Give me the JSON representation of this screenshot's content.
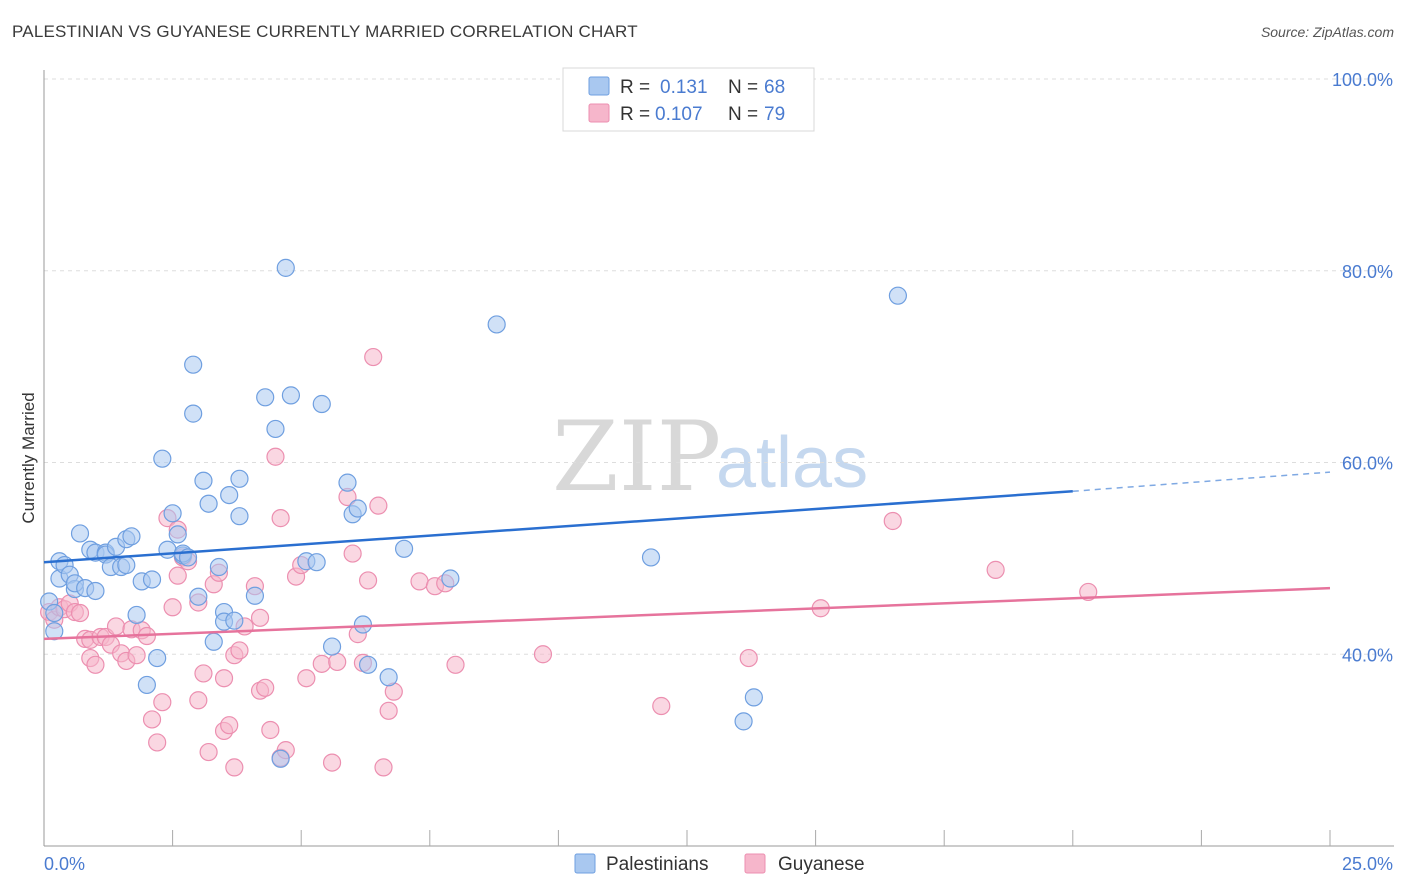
{
  "title": "PALESTINIAN VS GUYANESE CURRENTLY MARRIED CORRELATION CHART",
  "source": "Source: ZipAtlas.com",
  "watermark": {
    "zip": "ZIP",
    "atlas": "atlas"
  },
  "legend": {
    "rows": [
      {
        "r_label": "R =",
        "r_value": "0.131",
        "n_label": "N =",
        "n_value": "68"
      },
      {
        "r_label": "R =",
        "r_value": "0.107",
        "n_label": "N =",
        "n_value": "79"
      }
    ]
  },
  "bottom_legend": {
    "palestinians": "Palestinians",
    "guyanese": "Guyanese"
  },
  "colors": {
    "blue_fill": "#a9c8f0",
    "blue_stroke": "#6f9fe0",
    "blue_line": "#2a6fd0",
    "pink_fill": "#f6b6cb",
    "pink_stroke": "#ec8fb0",
    "pink_line": "#e6739c",
    "tick_text": "#4a7bd0",
    "grid": "#dddddd"
  },
  "chart_data": {
    "type": "scatter",
    "title": "PALESTINIAN VS GUYANESE CURRENTLY MARRIED CORRELATION CHART",
    "xlabel": "",
    "ylabel": "Currently Married",
    "xlim": [
      0,
      25
    ],
    "ylim": [
      20,
      100
    ],
    "x_tick_labels": [
      "0.0%",
      "25.0%"
    ],
    "y_ticks": [
      40,
      60,
      80,
      100
    ],
    "y_tick_labels": [
      "40.0%",
      "60.0%",
      "80.0%",
      "100.0%"
    ],
    "series": [
      {
        "name": "Palestinians",
        "color": "#6f9fe0",
        "R": 0.131,
        "N": 68,
        "trend": {
          "x0": 0,
          "y0": 49.6,
          "x1": 20,
          "y1": 57.0,
          "dash_x1": 25,
          "dash_y1": 59.0
        },
        "points": [
          [
            0.1,
            45.5
          ],
          [
            0.2,
            44.3
          ],
          [
            0.2,
            42.4
          ],
          [
            0.3,
            47.9
          ],
          [
            0.3,
            49.7
          ],
          [
            0.4,
            49.3
          ],
          [
            0.5,
            48.3
          ],
          [
            0.6,
            46.8
          ],
          [
            0.6,
            47.4
          ],
          [
            0.7,
            52.6
          ],
          [
            0.8,
            46.9
          ],
          [
            0.9,
            50.9
          ],
          [
            1.0,
            50.6
          ],
          [
            1.0,
            46.6
          ],
          [
            1.2,
            50.6
          ],
          [
            1.2,
            50.4
          ],
          [
            1.3,
            49.1
          ],
          [
            1.4,
            51.2
          ],
          [
            1.5,
            49.1
          ],
          [
            1.6,
            49.3
          ],
          [
            1.6,
            52.0
          ],
          [
            1.7,
            52.3
          ],
          [
            1.8,
            44.1
          ],
          [
            1.9,
            47.6
          ],
          [
            2.0,
            36.8
          ],
          [
            2.1,
            47.8
          ],
          [
            2.2,
            39.6
          ],
          [
            2.3,
            60.4
          ],
          [
            2.4,
            50.9
          ],
          [
            2.5,
            54.7
          ],
          [
            2.6,
            52.5
          ],
          [
            2.7,
            50.3
          ],
          [
            2.7,
            50.5
          ],
          [
            2.8,
            50.1
          ],
          [
            2.9,
            65.1
          ],
          [
            2.9,
            70.2
          ],
          [
            3.0,
            46.0
          ],
          [
            3.1,
            58.1
          ],
          [
            3.2,
            55.7
          ],
          [
            3.3,
            41.3
          ],
          [
            3.4,
            49.1
          ],
          [
            3.5,
            44.4
          ],
          [
            3.5,
            43.4
          ],
          [
            3.6,
            56.6
          ],
          [
            3.7,
            43.5
          ],
          [
            3.8,
            54.4
          ],
          [
            3.8,
            58.3
          ],
          [
            4.1,
            46.1
          ],
          [
            4.3,
            66.8
          ],
          [
            4.5,
            63.5
          ],
          [
            4.6,
            29.1
          ],
          [
            4.7,
            80.3
          ],
          [
            4.8,
            67.0
          ],
          [
            5.1,
            49.7
          ],
          [
            5.3,
            49.6
          ],
          [
            5.4,
            66.1
          ],
          [
            5.6,
            40.8
          ],
          [
            5.9,
            57.9
          ],
          [
            6.0,
            54.6
          ],
          [
            6.1,
            55.2
          ],
          [
            6.2,
            43.1
          ],
          [
            6.3,
            38.9
          ],
          [
            6.7,
            37.6
          ],
          [
            7.0,
            51.0
          ],
          [
            7.9,
            47.9
          ],
          [
            8.8,
            74.4
          ],
          [
            11.8,
            50.1
          ],
          [
            13.6,
            33.0
          ],
          [
            13.8,
            35.5
          ],
          [
            16.6,
            77.4
          ]
        ]
      },
      {
        "name": "Guyanese",
        "color": "#ec8fb0",
        "R": 0.107,
        "N": 79,
        "trend": {
          "x0": 0,
          "y0": 41.6,
          "x1": 25,
          "y1": 46.9
        },
        "points": [
          [
            0.1,
            44.4
          ],
          [
            0.2,
            43.6
          ],
          [
            0.3,
            44.9
          ],
          [
            0.4,
            44.7
          ],
          [
            0.5,
            45.3
          ],
          [
            0.6,
            44.4
          ],
          [
            0.7,
            44.3
          ],
          [
            0.8,
            41.6
          ],
          [
            0.9,
            39.6
          ],
          [
            0.9,
            41.5
          ],
          [
            1.0,
            38.9
          ],
          [
            1.1,
            41.8
          ],
          [
            1.2,
            41.8
          ],
          [
            1.3,
            41.0
          ],
          [
            1.4,
            42.9
          ],
          [
            1.5,
            40.1
          ],
          [
            1.6,
            39.3
          ],
          [
            1.7,
            42.6
          ],
          [
            1.8,
            39.9
          ],
          [
            1.9,
            42.5
          ],
          [
            2.0,
            41.9
          ],
          [
            2.1,
            33.2
          ],
          [
            2.2,
            30.8
          ],
          [
            2.3,
            35.0
          ],
          [
            2.4,
            54.2
          ],
          [
            2.5,
            44.9
          ],
          [
            2.6,
            48.2
          ],
          [
            2.6,
            53.0
          ],
          [
            2.7,
            50.1
          ],
          [
            2.8,
            49.7
          ],
          [
            3.0,
            45.4
          ],
          [
            3.0,
            35.2
          ],
          [
            3.1,
            38.0
          ],
          [
            3.2,
            29.8
          ],
          [
            3.3,
            47.3
          ],
          [
            3.4,
            48.5
          ],
          [
            3.5,
            37.5
          ],
          [
            3.5,
            32.0
          ],
          [
            3.6,
            32.6
          ],
          [
            3.7,
            28.2
          ],
          [
            3.7,
            39.9
          ],
          [
            3.8,
            40.4
          ],
          [
            3.9,
            42.9
          ],
          [
            4.1,
            47.1
          ],
          [
            4.2,
            43.8
          ],
          [
            4.2,
            36.2
          ],
          [
            4.3,
            36.5
          ],
          [
            4.4,
            32.1
          ],
          [
            4.5,
            60.6
          ],
          [
            4.6,
            54.2
          ],
          [
            4.6,
            29.2
          ],
          [
            4.7,
            30.0
          ],
          [
            4.9,
            48.1
          ],
          [
            5.0,
            49.3
          ],
          [
            5.1,
            37.5
          ],
          [
            5.4,
            39.0
          ],
          [
            5.6,
            28.7
          ],
          [
            5.7,
            39.2
          ],
          [
            5.9,
            56.4
          ],
          [
            6.0,
            50.5
          ],
          [
            6.1,
            42.1
          ],
          [
            6.2,
            39.1
          ],
          [
            6.3,
            47.7
          ],
          [
            6.4,
            71.0
          ],
          [
            6.5,
            55.5
          ],
          [
            6.6,
            28.2
          ],
          [
            6.7,
            34.1
          ],
          [
            6.8,
            36.1
          ],
          [
            7.3,
            47.6
          ],
          [
            7.6,
            47.1
          ],
          [
            7.8,
            47.4
          ],
          [
            8.0,
            38.9
          ],
          [
            9.7,
            40.0
          ],
          [
            12.0,
            34.6
          ],
          [
            13.7,
            39.6
          ],
          [
            15.1,
            44.8
          ],
          [
            16.5,
            53.9
          ],
          [
            18.5,
            48.8
          ],
          [
            20.3,
            46.5
          ]
        ]
      }
    ]
  }
}
